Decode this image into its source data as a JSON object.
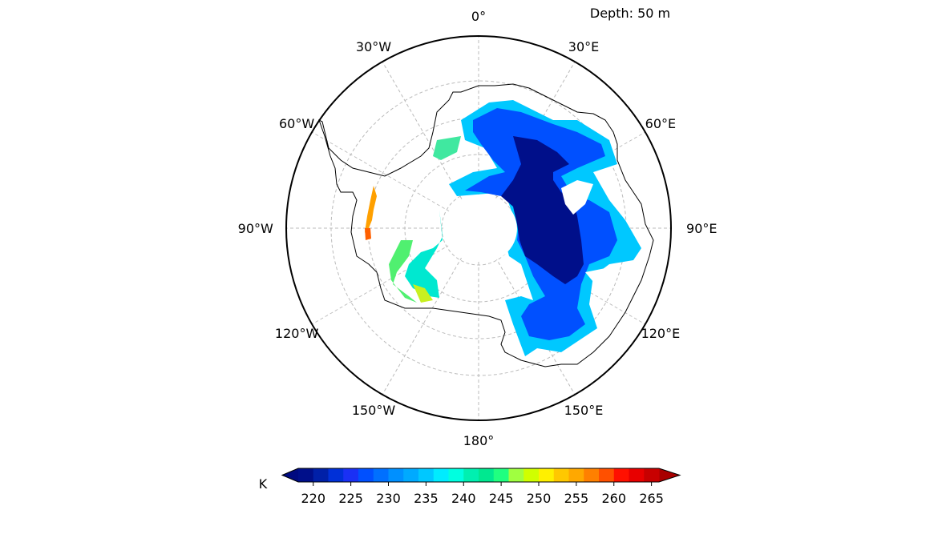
{
  "title": "Depth: 50 m",
  "map": {
    "projection": "south polar stereographic",
    "gridlines": "dashed",
    "longitude_labels": [
      "0°",
      "30°E",
      "60°E",
      "90°E",
      "120°E",
      "150°E",
      "180°",
      "150°W",
      "120°W",
      "90°W",
      "60°W",
      "30°W"
    ]
  },
  "colorbar": {
    "unit_label": "K",
    "min": 218,
    "max": 266,
    "step": 2,
    "extend": "both",
    "ticks": [
      "220",
      "225",
      "230",
      "235",
      "240",
      "245",
      "250",
      "255",
      "260",
      "265"
    ],
    "tick_values": [
      220,
      225,
      230,
      235,
      240,
      245,
      250,
      255,
      260,
      265
    ],
    "colors": [
      "#000f8a",
      "#0020a8",
      "#0030d8",
      "#1a30f5",
      "#0050ff",
      "#0070ff",
      "#0090ff",
      "#00aaff",
      "#00c8ff",
      "#00ecff",
      "#00ffe0",
      "#00f0b0",
      "#00e890",
      "#20ff80",
      "#a0ff40",
      "#d0ff00",
      "#fff000",
      "#ffc800",
      "#ffa800",
      "#ff8000",
      "#ff5000",
      "#ff1000",
      "#e80000",
      "#c80000"
    ],
    "under_color": "#000a80",
    "over_color": "#a80000"
  }
}
